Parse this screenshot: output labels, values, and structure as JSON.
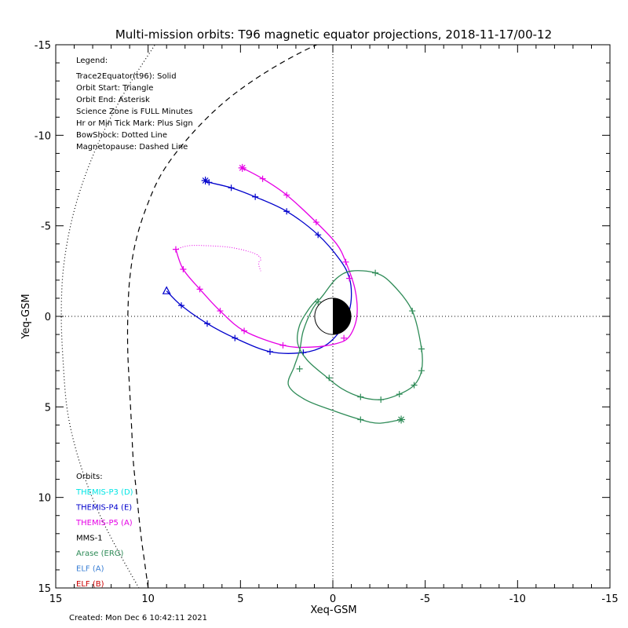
{
  "chart_data": {
    "type": "line",
    "title": "Multi-mission orbits: T96 magnetic equator projections, 2018-11-17/00-12",
    "xlabel": "Xeq-GSM",
    "ylabel": "Yeq-GSM",
    "xlim": [
      15,
      -15
    ],
    "ylim": [
      15,
      -15
    ],
    "x_ticks": [
      15,
      10,
      5,
      0,
      -5,
      -10,
      -15
    ],
    "y_ticks": [
      -15,
      -10,
      -5,
      0,
      5,
      10,
      15
    ],
    "x_tick_labels": [
      "15",
      "10",
      "5",
      "0",
      "-5",
      "-10",
      "-15"
    ],
    "y_tick_labels": [
      "-15",
      "-10",
      "-5",
      "0",
      "5",
      "10",
      "15"
    ],
    "legend": {
      "heading": "Legend:",
      "lines": [
        "Trace2Equator(t96): Solid",
        "Orbit Start: Triangle",
        "Orbit End: Asterisk",
        "Science Zone is FULL Minutes",
        "Hr or Min Tick Mark: Plus Sign",
        "BowShock: Dotted Line",
        "Magnetopause: Dashed Line"
      ]
    },
    "orbits": {
      "heading": "Orbits:",
      "entries": [
        {
          "label": "THEMIS-P3 (D)",
          "color": "#00e5e5"
        },
        {
          "label": "THEMIS-P4 (E)",
          "color": "#0000cc"
        },
        {
          "label": "THEMIS-P5 (A)",
          "color": "#e600e6"
        },
        {
          "label": "MMS-1",
          "color": "#000000"
        },
        {
          "label": "Arase (ERG)",
          "color": "#2e8b57"
        },
        {
          "label": "ELF (A)",
          "color": "#3a7fd5"
        },
        {
          "label": "ELF (B)",
          "color": "#cc0000"
        }
      ]
    },
    "series": [
      {
        "id": "themis-p4-pass1",
        "color": "#0000cc",
        "points": [
          [
            6.9,
            -7.5
          ],
          [
            6.7,
            -7.4
          ],
          [
            5.5,
            -7.1
          ],
          [
            4.2,
            -6.6
          ],
          [
            2.5,
            -5.8
          ],
          [
            0.8,
            -4.5
          ],
          [
            -0.4,
            -3.1
          ],
          [
            -0.9,
            -2.1
          ],
          [
            -1.0,
            -1.0
          ],
          [
            -0.8,
            0.0
          ],
          [
            -0.4,
            0.8
          ],
          [
            0.4,
            1.6
          ],
          [
            1.6,
            2.0
          ],
          [
            3.4,
            1.95
          ],
          [
            5.3,
            1.2
          ],
          [
            6.8,
            0.4
          ],
          [
            8.2,
            -0.6
          ],
          [
            9.0,
            -1.4
          ]
        ],
        "ticks": [
          [
            6.7,
            -7.4
          ],
          [
            5.5,
            -7.1
          ],
          [
            4.2,
            -6.6
          ],
          [
            2.5,
            -5.8
          ],
          [
            0.8,
            -4.5
          ],
          [
            -0.9,
            -2.1
          ],
          [
            1.6,
            2.0
          ],
          [
            3.4,
            1.95
          ],
          [
            5.3,
            1.2
          ],
          [
            6.8,
            0.4
          ],
          [
            8.2,
            -0.6
          ]
        ],
        "start": [
          9.0,
          -1.4
        ],
        "end": [
          6.9,
          -7.5
        ]
      },
      {
        "id": "themis-p5-main",
        "color": "#e600e6",
        "points": [
          [
            4.9,
            -8.2
          ],
          [
            3.8,
            -7.6
          ],
          [
            2.5,
            -6.7
          ],
          [
            0.9,
            -5.2
          ],
          [
            -0.2,
            -4.0
          ],
          [
            -0.7,
            -3.0
          ],
          [
            -1.2,
            -1.5
          ],
          [
            -1.3,
            0.0
          ],
          [
            -0.9,
            1.1
          ],
          [
            -0.2,
            1.5
          ],
          [
            1.2,
            1.7
          ],
          [
            2.7,
            1.6
          ],
          [
            4.8,
            0.8
          ],
          [
            6.1,
            -0.3
          ],
          [
            7.2,
            -1.5
          ],
          [
            8.1,
            -2.6
          ],
          [
            8.5,
            -3.7
          ]
        ],
        "ticks": [
          [
            3.8,
            -7.6
          ],
          [
            2.5,
            -6.7
          ],
          [
            0.9,
            -5.2
          ],
          [
            -0.7,
            -3.0
          ],
          [
            -0.9,
            -2.1
          ],
          [
            -0.6,
            1.2
          ],
          [
            2.7,
            1.6
          ],
          [
            4.8,
            0.8
          ],
          [
            6.1,
            -0.3
          ],
          [
            7.2,
            -1.5
          ],
          [
            8.1,
            -2.6
          ],
          [
            8.5,
            -3.7
          ]
        ],
        "end": [
          4.9,
          -8.2
        ]
      },
      {
        "id": "themis-p5-tail",
        "color": "#e600e6",
        "dotted": true,
        "points": [
          [
            8.5,
            -3.7
          ],
          [
            7.8,
            -3.9
          ],
          [
            6.8,
            -3.9
          ],
          [
            5.5,
            -3.8
          ],
          [
            4.3,
            -3.5
          ],
          [
            3.9,
            -3.2
          ],
          [
            4.0,
            -3.0
          ],
          [
            4.0,
            -2.8
          ],
          [
            3.9,
            -2.5
          ]
        ]
      },
      {
        "id": "arase-erg",
        "color": "#2e8b57",
        "points": [
          [
            -3.7,
            5.7
          ],
          [
            -2.5,
            5.9
          ],
          [
            -1.5,
            5.7
          ],
          [
            0.0,
            5.2
          ],
          [
            1.5,
            4.6
          ],
          [
            2.4,
            3.8
          ],
          [
            2.1,
            2.8
          ],
          [
            1.8,
            1.9
          ],
          [
            1.6,
            0.8
          ],
          [
            1.1,
            -0.4
          ],
          [
            0.5,
            -1.2
          ],
          [
            -0.2,
            -2.1
          ],
          [
            -1.0,
            -2.5
          ],
          [
            -2.3,
            -2.4
          ],
          [
            -3.2,
            -1.8
          ],
          [
            -4.3,
            -0.3
          ],
          [
            -4.8,
            1.8
          ],
          [
            -4.8,
            3.0
          ],
          [
            -4.4,
            3.8
          ],
          [
            -3.6,
            4.3
          ],
          [
            -2.6,
            4.6
          ],
          [
            -1.5,
            4.45
          ],
          [
            -0.5,
            4.0
          ],
          [
            0.4,
            3.3
          ],
          [
            1.4,
            2.4
          ],
          [
            1.9,
            1.5
          ],
          [
            1.8,
            0.5
          ],
          [
            1.3,
            -0.4
          ],
          [
            0.8,
            -1.0
          ]
        ],
        "ticks": [
          [
            -1.5,
            5.7
          ],
          [
            1.8,
            2.9
          ],
          [
            0.2,
            3.4
          ],
          [
            -2.3,
            -2.4
          ],
          [
            -4.3,
            -0.3
          ],
          [
            -4.8,
            1.8
          ],
          [
            -4.8,
            3.0
          ],
          [
            -4.4,
            3.8
          ],
          [
            -3.6,
            4.3
          ],
          [
            -2.6,
            4.6
          ],
          [
            -1.5,
            4.45
          ],
          [
            0.8,
            -0.8
          ]
        ],
        "end": [
          -3.7,
          5.7
        ]
      }
    ],
    "magnetopause": {
      "color": "#000000",
      "points": [
        [
          10.0,
          15.0
        ],
        [
          10.2,
          13.5
        ],
        [
          10.4,
          12.0
        ],
        [
          10.6,
          10.0
        ],
        [
          10.8,
          8.0
        ],
        [
          10.9,
          6.0
        ],
        [
          11.0,
          4.0
        ],
        [
          11.1,
          2.0
        ],
        [
          11.1,
          0.0
        ],
        [
          11.0,
          -2.0
        ],
        [
          10.7,
          -4.0
        ],
        [
          10.1,
          -6.0
        ],
        [
          9.2,
          -8.0
        ],
        [
          7.7,
          -10.0
        ],
        [
          5.8,
          -11.9
        ],
        [
          3.6,
          -13.5
        ],
        [
          1.3,
          -14.8
        ],
        [
          0.0,
          -15.3
        ],
        [
          -1.0,
          -15.6
        ]
      ]
    },
    "bowshock": {
      "color": "#000000",
      "points": [
        [
          10.5,
          15.0
        ],
        [
          11.6,
          13.0
        ],
        [
          12.6,
          11.0
        ],
        [
          13.4,
          9.0
        ],
        [
          14.0,
          7.0
        ],
        [
          14.4,
          5.0
        ],
        [
          14.6,
          2.5
        ],
        [
          14.7,
          0.0
        ],
        [
          14.6,
          -2.5
        ],
        [
          14.2,
          -5.0
        ],
        [
          13.5,
          -7.5
        ],
        [
          12.5,
          -10.0
        ],
        [
          11.2,
          -12.5
        ],
        [
          9.5,
          -15.2
        ]
      ]
    }
  },
  "created": "Created: Mon Dec  6 10:42:11 2021"
}
